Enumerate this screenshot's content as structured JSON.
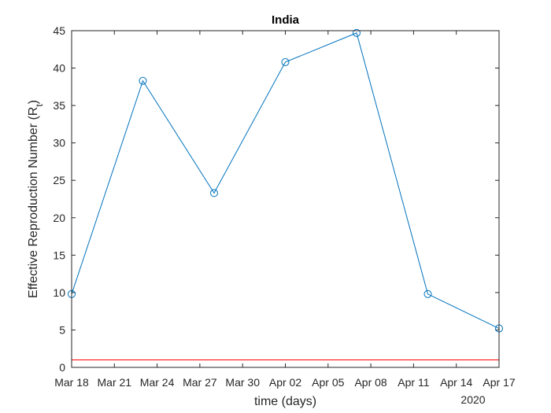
{
  "chart_data": {
    "type": "line",
    "title": "India",
    "xlabel": "time (days)",
    "ylabel": "Effective Reproduction Number (R",
    "ylabel_subscript": "t",
    "ylabel_close": ")",
    "xlim": [
      "2020-03-18",
      "2020-04-17"
    ],
    "ylim": [
      0,
      45
    ],
    "x_ticks": [
      "2020-03-18",
      "2020-03-21",
      "2020-03-24",
      "2020-03-27",
      "2020-03-30",
      "2020-04-02",
      "2020-04-05",
      "2020-04-08",
      "2020-04-11",
      "2020-04-14",
      "2020-04-17"
    ],
    "x_tick_labels": [
      "Mar 18",
      "Mar 21",
      "Mar 24",
      "Mar 27",
      "Mar 30",
      "Apr 02",
      "Apr 05",
      "Apr 08",
      "Apr 11",
      "Apr 14",
      "Apr 17"
    ],
    "x_axis_secondary_label": "2020",
    "y_ticks": [
      0,
      5,
      10,
      15,
      20,
      25,
      30,
      35,
      40,
      45
    ],
    "grid": false,
    "series": [
      {
        "color": "#0072BD",
        "marker": "circle",
        "points": [
          {
            "x": "2020-03-18",
            "y": 9.8
          },
          {
            "x": "2020-03-23",
            "y": 38.3
          },
          {
            "x": "2020-03-28",
            "y": 23.3
          },
          {
            "x": "2020-04-02",
            "y": 40.8
          },
          {
            "x": "2020-04-07",
            "y": 44.7
          },
          {
            "x": "2020-04-12",
            "y": 9.8
          },
          {
            "x": "2020-04-17",
            "y": 5.2
          }
        ]
      }
    ],
    "reference_line": {
      "y": 1,
      "color": "#ff0000"
    }
  }
}
